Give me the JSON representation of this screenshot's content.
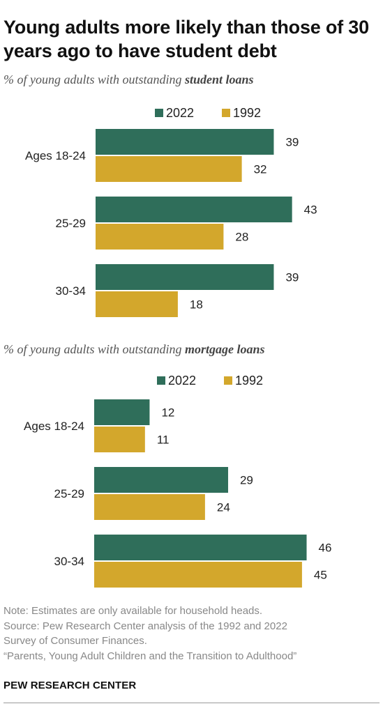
{
  "title": "Young adults more likely than those of 30 years ago to have student debt",
  "colors": {
    "series_2022": "#2f6e5a",
    "series_1992": "#d3a72c"
  },
  "chart_data": [
    {
      "type": "bar",
      "orientation": "horizontal",
      "subtitle_prefix": "% of young adults with outstanding ",
      "subtitle_emphasis": "student loans",
      "categories": [
        "Ages 18-24",
        "25-29",
        "30-34"
      ],
      "series": [
        {
          "name": "2022",
          "values": [
            39,
            43,
            39
          ]
        },
        {
          "name": "1992",
          "values": [
            32,
            28,
            18
          ]
        }
      ],
      "legend_position": "top"
    },
    {
      "type": "bar",
      "orientation": "horizontal",
      "subtitle_prefix": "% of young adults with outstanding ",
      "subtitle_emphasis": "mortgage loans",
      "categories": [
        "Ages 18-24",
        "25-29",
        "30-34"
      ],
      "series": [
        {
          "name": "2022",
          "values": [
            12,
            29,
            46
          ]
        },
        {
          "name": "1992",
          "values": [
            11,
            24,
            45
          ]
        }
      ],
      "legend_position": "top"
    }
  ],
  "notes": {
    "note": "Note: Estimates are only available for household heads.",
    "source_line1": "Source: Pew Research Center analysis of the 1992 and 2022",
    "source_line2": "Survey of Consumer Finances.",
    "report": "“Parents, Young Adult Children and the Transition to Adulthood”"
  },
  "footer": "PEW RESEARCH CENTER"
}
